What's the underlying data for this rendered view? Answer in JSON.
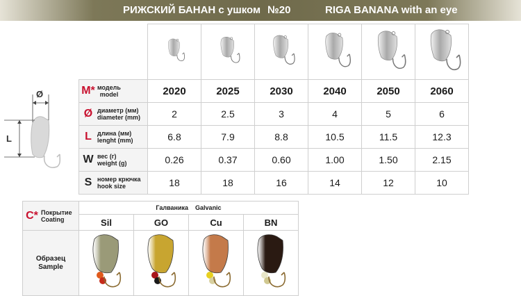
{
  "header": {
    "title_ru": "РИЖСКИЙ БАНАН с ушком",
    "number": "№20",
    "title_en": "RIGA BANANA with an eye"
  },
  "diagram": {
    "d_label": "Ø",
    "l_label": "L"
  },
  "spec": {
    "rows": {
      "model": {
        "letter": "M*",
        "ru": "модель",
        "en": "model"
      },
      "diameter": {
        "letter": "Ø",
        "ru": "диаметр (мм)",
        "en": "diameter (mm)"
      },
      "length": {
        "letter": "L",
        "ru": "длина (мм)",
        "en": "lenght (mm)"
      },
      "weight": {
        "letter": "W",
        "ru": "вес (г)",
        "en": "weight (g)"
      },
      "hook": {
        "letter": "S",
        "ru": "номер крючка",
        "en": "hook size"
      }
    },
    "models": [
      {
        "model": "2020",
        "diameter": "2",
        "length": "6.8",
        "weight": "0.26",
        "hook": "18",
        "scale": 0.55
      },
      {
        "model": "2025",
        "diameter": "2.5",
        "length": "7.9",
        "weight": "0.37",
        "hook": "18",
        "scale": 0.64
      },
      {
        "model": "2030",
        "diameter": "3",
        "length": "8.8",
        "weight": "0.60",
        "hook": "16",
        "scale": 0.72
      },
      {
        "model": "2040",
        "diameter": "4",
        "length": "10.5",
        "weight": "1.00",
        "hook": "14",
        "scale": 0.84
      },
      {
        "model": "2050",
        "diameter": "5",
        "length": "11.5",
        "weight": "1.50",
        "hook": "12",
        "scale": 0.93
      },
      {
        "model": "2060",
        "diameter": "6",
        "length": "12.3",
        "weight": "2.15",
        "hook": "10",
        "scale": 1.0
      }
    ]
  },
  "coating": {
    "letter": "C*",
    "ru": "Покрытие",
    "en": "Coating",
    "group_ru": "Галваника",
    "group_en": "Galvanic",
    "sample_ru": "Образец",
    "sample_en": "Sample",
    "types": [
      {
        "code": "Sil",
        "body": "#9a9a78",
        "bead1": "#e05a1c",
        "bead2": "#c62a1a"
      },
      {
        "code": "GO",
        "body": "#c8a530",
        "bead1": "#a8151a",
        "bead2": "#1a1a1a"
      },
      {
        "code": "Cu",
        "body": "#c47a4a",
        "bead1": "#e8d020",
        "bead2": "#d8d0a0"
      },
      {
        "code": "BN",
        "body": "#2a1a12",
        "bead1": "#e8e6c8",
        "bead2": "#d0c890"
      }
    ]
  }
}
